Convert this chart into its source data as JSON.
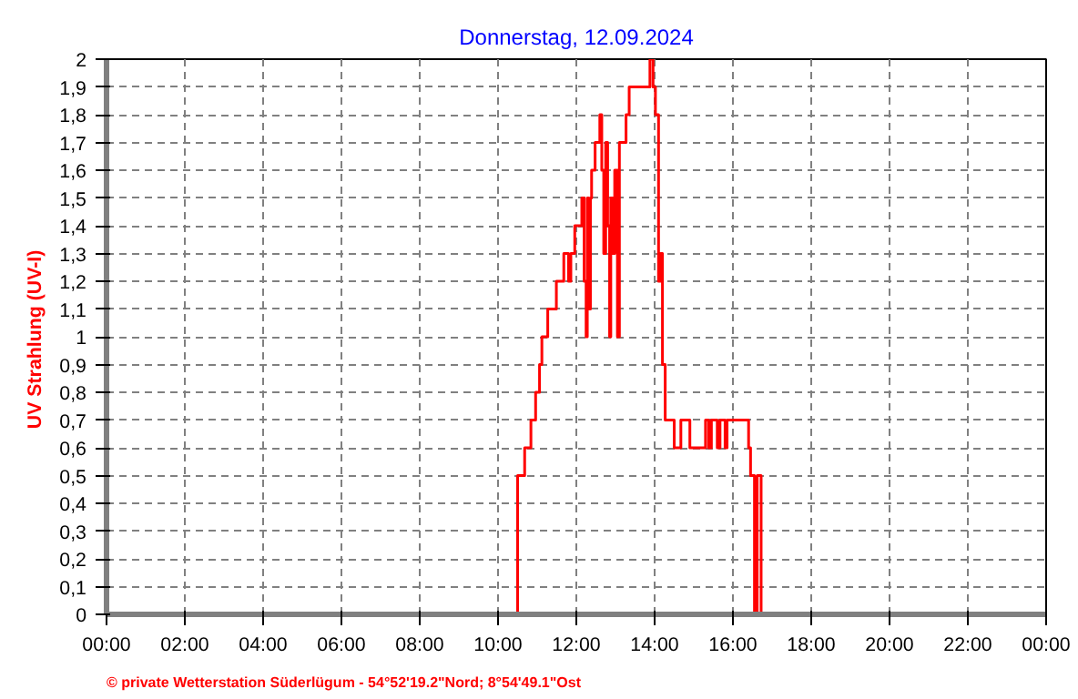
{
  "chart_data": {
    "type": "step",
    "title": "Donnerstag, 12.09.2024",
    "ylabel": "UV Strahlung  (UV-I)",
    "annotations": [
      "© private Wetterstation Süderlügum - 54°52'19.2\"Nord; 8°54'49.1\"Ost"
    ],
    "series": [
      {
        "color": "#ff0000",
        "x": [
          0,
          10.5,
          10.68,
          10.84,
          10.96,
          11.06,
          11.12,
          11.27,
          11.49,
          11.68,
          11.8,
          11.86,
          11.96,
          12.14,
          12.2,
          12.25,
          12.28,
          12.32,
          12.36,
          12.39,
          12.48,
          12.6,
          12.65,
          12.7,
          12.75,
          12.8,
          12.85,
          12.88,
          12.93,
          12.98,
          13.05,
          13.1,
          13.27,
          13.35,
          13.88,
          13.96,
          14.02,
          14.1,
          14.15,
          14.2,
          14.27,
          14.5,
          14.67,
          14.9,
          15.3,
          15.38,
          15.45,
          15.6,
          15.67,
          15.8,
          15.85,
          16.4,
          16.45,
          16.55,
          16.62,
          16.72,
          16.9
        ],
        "values": [
          0,
          0.5,
          0.6,
          0.7,
          0.8,
          0.9,
          1.0,
          1.1,
          1.2,
          1.3,
          1.2,
          1.3,
          1.4,
          1.5,
          1.2,
          1.0,
          1.5,
          1.1,
          1.5,
          1.6,
          1.7,
          1.8,
          1.6,
          1.3,
          1.7,
          1.4,
          1.0,
          1.5,
          1.3,
          1.6,
          1.0,
          1.7,
          1.8,
          1.9,
          2.0,
          1.9,
          1.8,
          1.2,
          1.3,
          0.9,
          0.7,
          0.6,
          0.7,
          0.6,
          0.7,
          0.6,
          0.7,
          0.6,
          0.7,
          0.6,
          0.7,
          0.6,
          0.5,
          0,
          0.5,
          0,
          0
        ]
      }
    ],
    "xlim": [
      0,
      24
    ],
    "xticks": [
      {
        "value": 0,
        "label": "00:00"
      },
      {
        "value": 2,
        "label": "02:00"
      },
      {
        "value": 4,
        "label": "04:00"
      },
      {
        "value": 6,
        "label": "06:00"
      },
      {
        "value": 8,
        "label": "08:00"
      },
      {
        "value": 10,
        "label": "10:00"
      },
      {
        "value": 12,
        "label": "12:00"
      },
      {
        "value": 14,
        "label": "14:00"
      },
      {
        "value": 16,
        "label": "16:00"
      },
      {
        "value": 18,
        "label": "18:00"
      },
      {
        "value": 20,
        "label": "20:00"
      },
      {
        "value": 22,
        "label": "22:00"
      },
      {
        "value": 24,
        "label": "00:00"
      }
    ],
    "ylim": [
      0,
      2
    ],
    "yticks": [
      0,
      {
        "value": 0.1,
        "label": "0,1"
      },
      {
        "value": 0.2,
        "label": "0,2"
      },
      {
        "value": 0.3,
        "label": "0,3"
      },
      {
        "value": 0.4,
        "label": "0,4"
      },
      {
        "value": 0.5,
        "label": "0,5"
      },
      {
        "value": 0.6,
        "label": "0,6"
      },
      {
        "value": 0.7,
        "label": "0,7"
      },
      {
        "value": 0.8,
        "label": "0,8"
      },
      {
        "value": 0.9,
        "label": "0,9"
      },
      1,
      {
        "value": 1.1,
        "label": "1,1"
      },
      {
        "value": 1.2,
        "label": "1,2"
      },
      {
        "value": 1.3,
        "label": "1,3"
      },
      {
        "value": 1.4,
        "label": "1,4"
      },
      {
        "value": 1.5,
        "label": "1,5"
      },
      {
        "value": 1.6,
        "label": "1,6"
      },
      {
        "value": 1.7,
        "label": "1,7"
      },
      {
        "value": 1.8,
        "label": "1,8"
      },
      {
        "value": 1.9,
        "label": "1,9"
      },
      2
    ],
    "grid": true,
    "line_style": "solid"
  }
}
